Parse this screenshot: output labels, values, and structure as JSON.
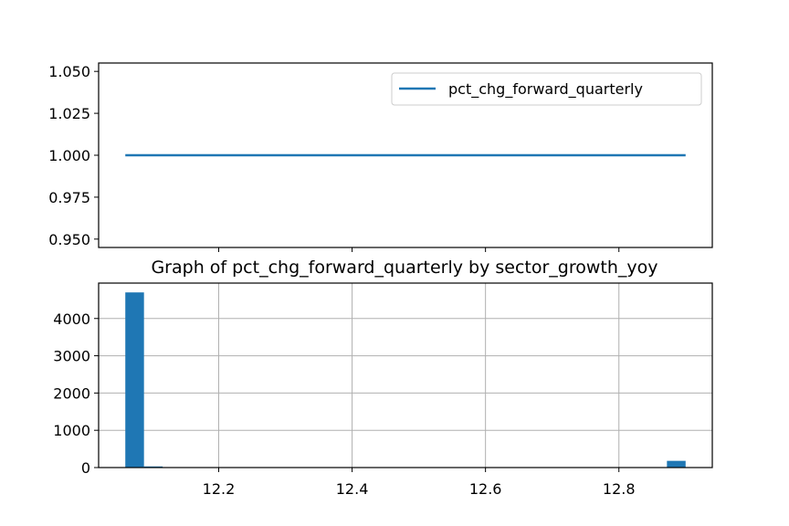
{
  "chart_data": [
    {
      "type": "line",
      "title": "",
      "xlabel": "",
      "ylabel": "",
      "ylim": [
        0.945,
        1.055
      ],
      "xlim": [
        12.02,
        12.94
      ],
      "y_ticks": [
        0.95,
        0.975,
        1.0,
        1.025,
        1.05
      ],
      "y_tick_labels": [
        "0.950",
        "0.975",
        "1.000",
        "1.025",
        "1.050"
      ],
      "x_ticks": [
        12.2,
        12.4,
        12.6,
        12.8
      ],
      "x_tick_labels_visible": false,
      "series": [
        {
          "name": "pct_chg_forward_quarterly",
          "x": [
            12.06,
            12.9
          ],
          "y": [
            1.0,
            1.0
          ],
          "color": "#1f77b4"
        }
      ],
      "legend": {
        "position": "top-right",
        "entries": [
          "pct_chg_forward_quarterly"
        ]
      },
      "grid": false
    },
    {
      "type": "bar",
      "title": "Graph of pct_chg_forward_quarterly by sector_growth_yoy",
      "xlabel": "",
      "ylabel": "",
      "xlim": [
        12.02,
        12.94
      ],
      "ylim": [
        0,
        4950
      ],
      "x_ticks": [
        12.2,
        12.4,
        12.6,
        12.8
      ],
      "x_tick_labels": [
        "12.2",
        "12.4",
        "12.6",
        "12.8"
      ],
      "y_ticks": [
        0,
        1000,
        2000,
        3000,
        4000
      ],
      "y_tick_labels": [
        "0",
        "1000",
        "2000",
        "3000",
        "4000"
      ],
      "bins": [
        {
          "x0": 12.06,
          "x1": 12.088,
          "count": 4700
        },
        {
          "x0": 12.088,
          "x1": 12.116,
          "count": 30
        },
        {
          "x0": 12.872,
          "x1": 12.9,
          "count": 180
        }
      ],
      "color": "#1f77b4",
      "grid": true
    }
  ]
}
